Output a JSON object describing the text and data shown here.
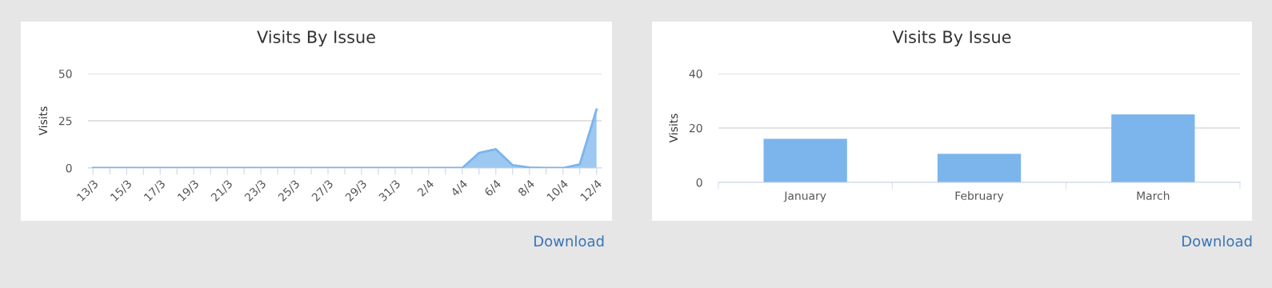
{
  "chart_data": [
    {
      "type": "area",
      "title": "Visits By Issue",
      "ylabel": "Visits",
      "categories": [
        "13/3",
        null,
        "15/3",
        null,
        "17/3",
        null,
        "19/3",
        null,
        "21/3",
        null,
        "23/3",
        null,
        "25/3",
        null,
        "27/3",
        null,
        "29/3",
        null,
        "31/3",
        null,
        "2/4",
        null,
        "4/4",
        null,
        "6/4",
        null,
        "8/4",
        null,
        "10/4",
        null,
        "12/4"
      ],
      "series": [
        {
          "color": "#7cb5ec",
          "values": [
            0,
            0,
            0,
            0,
            0,
            0,
            0,
            0,
            0,
            0,
            0,
            0,
            0,
            0,
            0,
            0,
            0,
            0,
            0,
            0,
            0,
            0,
            0,
            8,
            10,
            1.5,
            0.3,
            0,
            0,
            2,
            31
          ]
        }
      ],
      "ylim": [
        0,
        50
      ],
      "yticks": [
        0,
        25,
        50
      ],
      "grid": "y",
      "legend": false,
      "annotations": [
        "Download"
      ]
    },
    {
      "type": "bar",
      "title": "Visits By Issue",
      "ylabel": "Visits",
      "categories": [
        "January",
        "February",
        "March"
      ],
      "series": [
        {
          "color": "#7cb5ec",
          "values": [
            16,
            10.5,
            25
          ]
        }
      ],
      "ylim": [
        0,
        40
      ],
      "yticks": [
        0,
        20,
        40
      ],
      "grid": "y",
      "legend": false,
      "annotations": [
        "Download"
      ]
    }
  ]
}
